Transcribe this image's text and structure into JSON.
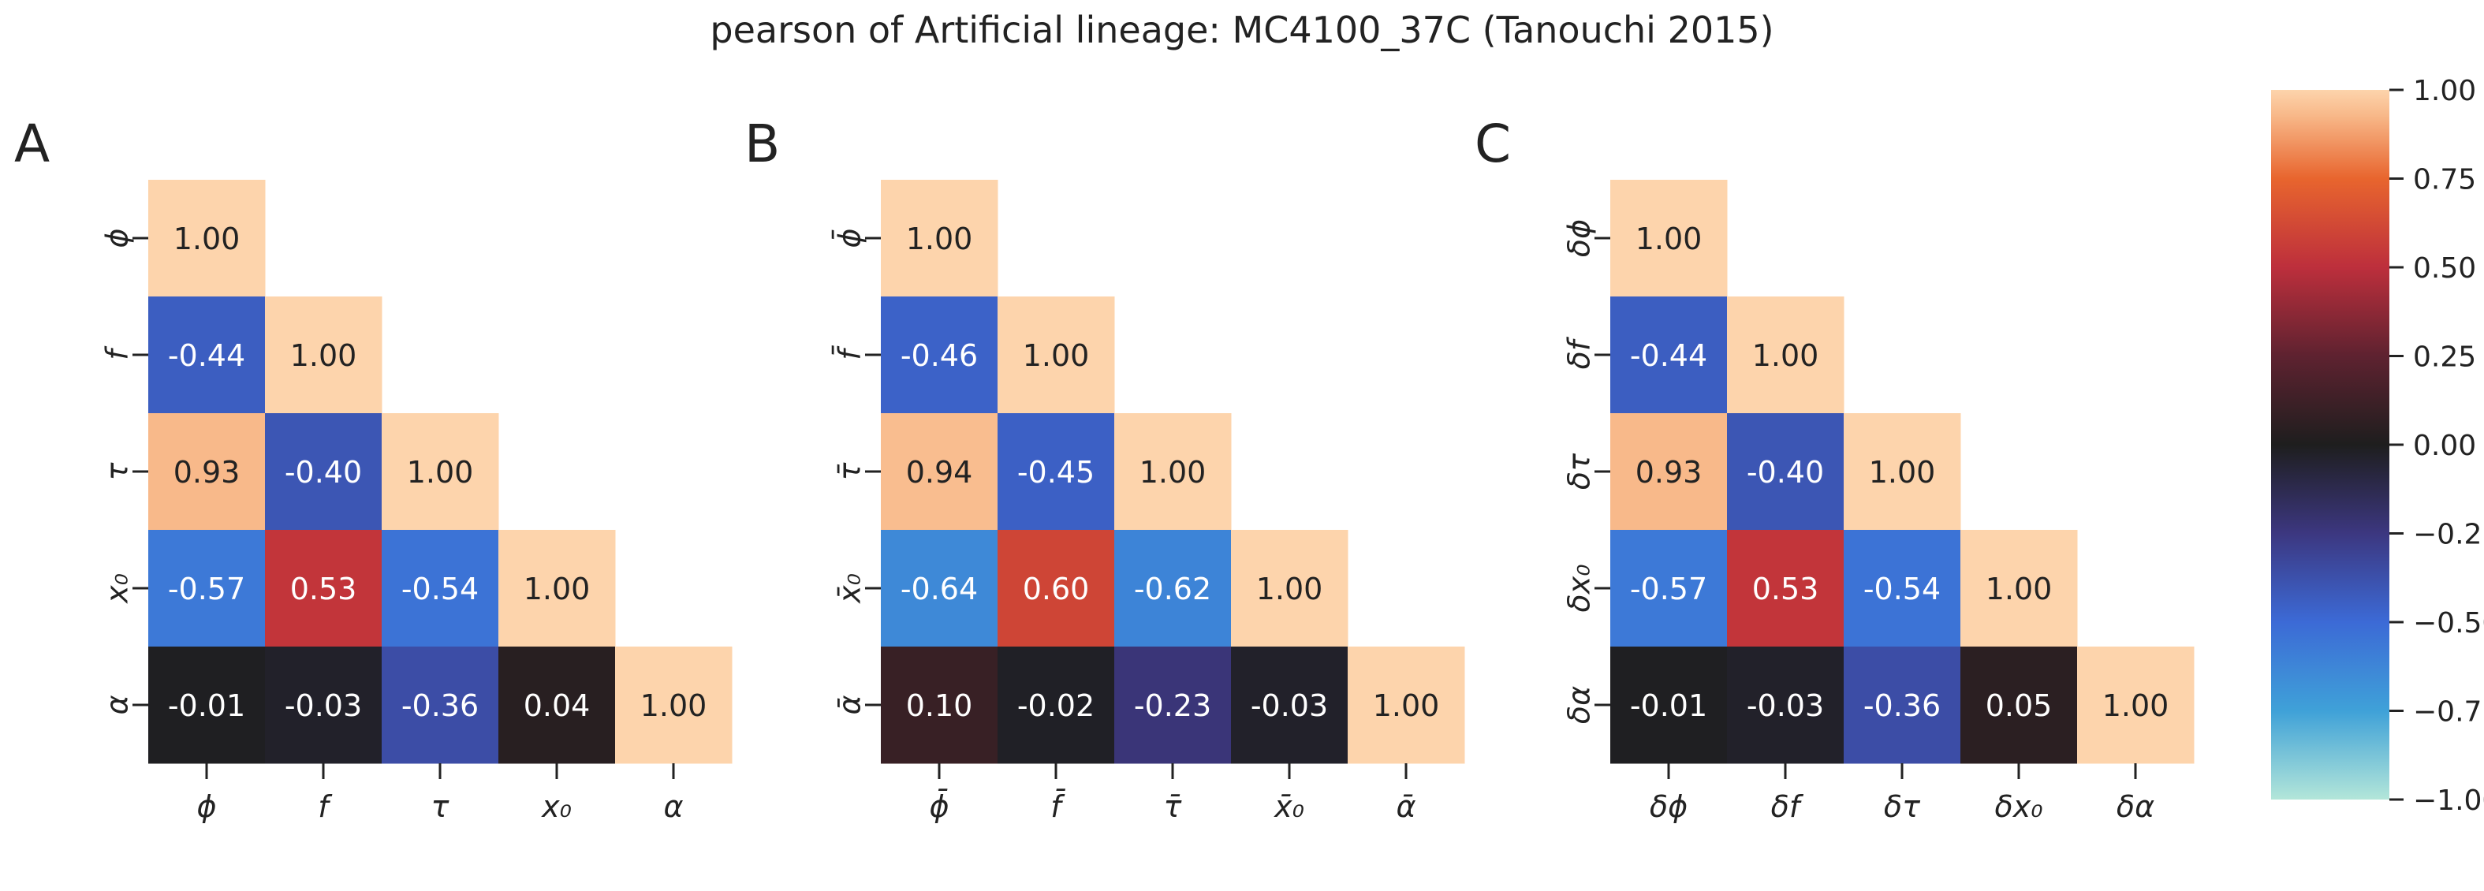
{
  "title": "pearson of Artificial lineage: MC4100_37C (Tanouchi 2015)",
  "chart_data": [
    {
      "type": "heatmap",
      "panel_label": "A",
      "labels": [
        "ϕ",
        "f",
        "τ",
        "x₀",
        "α"
      ],
      "values": [
        [
          1.0
        ],
        [
          -0.44,
          1.0
        ],
        [
          0.93,
          -0.4,
          1.0
        ],
        [
          -0.57,
          0.53,
          -0.54,
          1.0
        ],
        [
          -0.01,
          -0.03,
          -0.36,
          0.04,
          1.0
        ]
      ]
    },
    {
      "type": "heatmap",
      "panel_label": "B",
      "labels": [
        "ϕ̄",
        "f̄",
        "τ̄",
        "x̄₀",
        "ᾱ"
      ],
      "values": [
        [
          1.0
        ],
        [
          -0.46,
          1.0
        ],
        [
          0.94,
          -0.45,
          1.0
        ],
        [
          -0.64,
          0.6,
          -0.62,
          1.0
        ],
        [
          0.1,
          -0.02,
          -0.23,
          -0.03,
          1.0
        ]
      ]
    },
    {
      "type": "heatmap",
      "panel_label": "C",
      "labels": [
        "δϕ",
        "δf",
        "δτ",
        "δx₀",
        "δα"
      ],
      "values": [
        [
          1.0
        ],
        [
          -0.44,
          1.0
        ],
        [
          0.93,
          -0.4,
          1.0
        ],
        [
          -0.57,
          0.53,
          -0.54,
          1.0
        ],
        [
          -0.01,
          -0.03,
          -0.36,
          0.05,
          1.0
        ]
      ]
    }
  ],
  "colorbar": {
    "ticks": [
      "1.00",
      "0.75",
      "0.50",
      "0.25",
      "0.00",
      "−0.25",
      "−0.50",
      "−0.75",
      "−1.00"
    ],
    "range": [
      -1,
      1
    ],
    "colormap": "icefire",
    "stops": [
      {
        "v": -1.0,
        "c": "#b3e6d9"
      },
      {
        "v": -0.75,
        "c": "#3fa1d8"
      },
      {
        "v": -0.5,
        "c": "#3c6ad6"
      },
      {
        "v": -0.25,
        "c": "#3c3780"
      },
      {
        "v": 0.0,
        "c": "#1e1e1e"
      },
      {
        "v": 0.25,
        "c": "#5e2230"
      },
      {
        "v": 0.5,
        "c": "#bd2f3c"
      },
      {
        "v": 0.75,
        "c": "#e8652e"
      },
      {
        "v": 0.93,
        "c": "#f8b98a"
      },
      {
        "v": 1.0,
        "c": "#fdd4ac"
      }
    ]
  }
}
